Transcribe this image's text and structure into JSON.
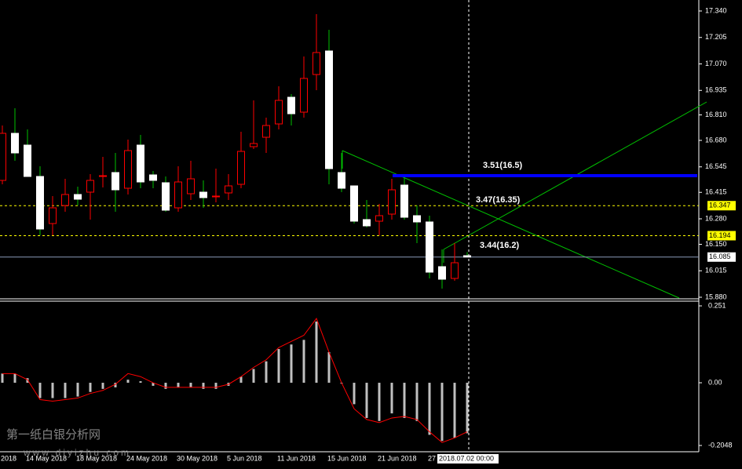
{
  "chart_data": [
    {
      "type": "candlestick",
      "categories": [
        "2018",
        null,
        "14 May 2018",
        null,
        null,
        null,
        "18 May 2018",
        null,
        null,
        null,
        "24 May 2018",
        null,
        null,
        null,
        "30 May 2018",
        null,
        null,
        null,
        "5 Jun 2018",
        null,
        null,
        null,
        "11 Jun 2018",
        null,
        null,
        null,
        "15 Jun 2018",
        null,
        null,
        null,
        "21 Jun 2018",
        null,
        null,
        null,
        "27",
        null,
        null,
        null
      ],
      "open": [
        16.476,
        16.716,
        16.656,
        16.496,
        16.256,
        16.348,
        16.404,
        16.416,
        16.496,
        16.516,
        16.436,
        16.656,
        16.504,
        16.464,
        16.336,
        16.408,
        16.416,
        16.392,
        16.412,
        16.456,
        16.648,
        16.696,
        16.764,
        16.9,
        16.824,
        17.016,
        17.136,
        16.516,
        16.448,
        16.276,
        16.268,
        16.304,
        16.452,
        16.296,
        16.264,
        16.036,
        15.976,
        16.092
      ],
      "high": [
        16.756,
        16.844,
        16.736,
        16.548,
        16.396,
        16.484,
        16.444,
        16.508,
        16.596,
        16.616,
        16.684,
        16.708,
        16.524,
        16.496,
        16.548,
        16.576,
        16.476,
        16.536,
        16.508,
        16.724,
        16.884,
        16.796,
        16.956,
        16.916,
        17.108,
        17.324,
        17.244,
        16.616,
        16.448,
        16.376,
        16.356,
        16.484,
        16.492,
        16.348,
        16.296,
        16.124,
        16.156,
        16.11
      ],
      "low": [
        16.456,
        16.576,
        16.496,
        16.196,
        16.196,
        16.316,
        16.348,
        16.276,
        16.44,
        16.316,
        16.404,
        16.436,
        16.436,
        16.316,
        16.316,
        16.376,
        16.336,
        16.364,
        16.376,
        16.436,
        16.636,
        16.616,
        16.736,
        16.756,
        16.796,
        16.936,
        16.456,
        16.416,
        16.256,
        16.236,
        16.196,
        16.276,
        16.276,
        16.156,
        15.976,
        15.924,
        15.964,
        16.085
      ],
      "close": [
        16.716,
        16.616,
        16.496,
        16.228,
        16.336,
        16.404,
        16.38,
        16.476,
        16.5,
        16.428,
        16.628,
        16.468,
        16.476,
        16.324,
        16.468,
        16.484,
        16.388,
        16.396,
        16.448,
        16.624,
        16.664,
        16.756,
        16.884,
        16.816,
        16.996,
        17.128,
        16.536,
        16.436,
        16.268,
        16.244,
        16.296,
        16.428,
        16.288,
        16.264,
        16.008,
        15.972,
        16.056,
        16.085
      ],
      "up_color": "#ff0000",
      "down_color": "#ffffff",
      "down_wick_color": "#00c000",
      "ylim": [
        15.872,
        17.396
      ],
      "yticks": [
        {
          "value": 17.34,
          "label": "17.340"
        },
        17.205,
        {
          "value": 17.07,
          "label": "17.070"
        },
        16.935,
        {
          "value": 16.81,
          "label": "16.810"
        },
        {
          "value": 16.68,
          "label": "16.680"
        },
        16.545,
        16.415,
        {
          "value": 16.28,
          "label": "16.280"
        },
        {
          "value": 16.15,
          "label": "16.150"
        },
        16.015,
        {
          "value": 15.88,
          "label": "15.880"
        }
      ],
      "hlines": [
        {
          "value": 16.347,
          "color": "#ffff00",
          "dashed": true
        },
        {
          "value": 16.194,
          "color": "#ffff00",
          "dashed": true
        },
        {
          "value": 16.085,
          "color": "#ffffff",
          "dashed": false
        }
      ],
      "level": {
        "value": 16.5,
        "color": "#0000ff"
      },
      "annotations": [
        "3.51(16.5)",
        "3.47(16.35)",
        "3.44(16.2)"
      ],
      "cursor_label": "2018.07.02 00:00"
    },
    {
      "type": "macd",
      "histogram": [
        0.03,
        0.03,
        0.015,
        -0.05,
        -0.05,
        -0.05,
        -0.045,
        -0.03,
        -0.02,
        -0.015,
        0.01,
        0.005,
        -0.01,
        -0.02,
        -0.015,
        -0.015,
        -0.02,
        -0.02,
        -0.01,
        0.02,
        0.045,
        0.07,
        0.11,
        0.125,
        0.14,
        0.2,
        0.1,
        0.0,
        -0.07,
        -0.115,
        -0.125,
        -0.1,
        -0.115,
        -0.125,
        -0.17,
        -0.19,
        -0.18,
        -0.165
      ],
      "signal": [
        0.03,
        0.03,
        0.01,
        -0.055,
        -0.06,
        -0.055,
        -0.05,
        -0.035,
        -0.025,
        -0.005,
        0.03,
        0.02,
        0.0,
        -0.015,
        -0.015,
        -0.015,
        -0.015,
        -0.015,
        -0.005,
        0.02,
        0.05,
        0.075,
        0.115,
        0.135,
        0.155,
        0.21,
        0.1,
        0.0,
        -0.085,
        -0.12,
        -0.13,
        -0.115,
        -0.11,
        -0.12,
        -0.16,
        -0.195,
        -0.18,
        -0.16
      ],
      "color": "#c0c0c0",
      "signal_color": "#ff0000",
      "ylim": [
        -0.2227,
        0.2664
      ],
      "yticks": [
        0.251,
        {
          "value": 0,
          "label": "0.00"
        },
        -0.2048
      ]
    }
  ],
  "watermark": {
    "title": "第一纸白银分析网",
    "url": "www.diyizhu.com"
  }
}
